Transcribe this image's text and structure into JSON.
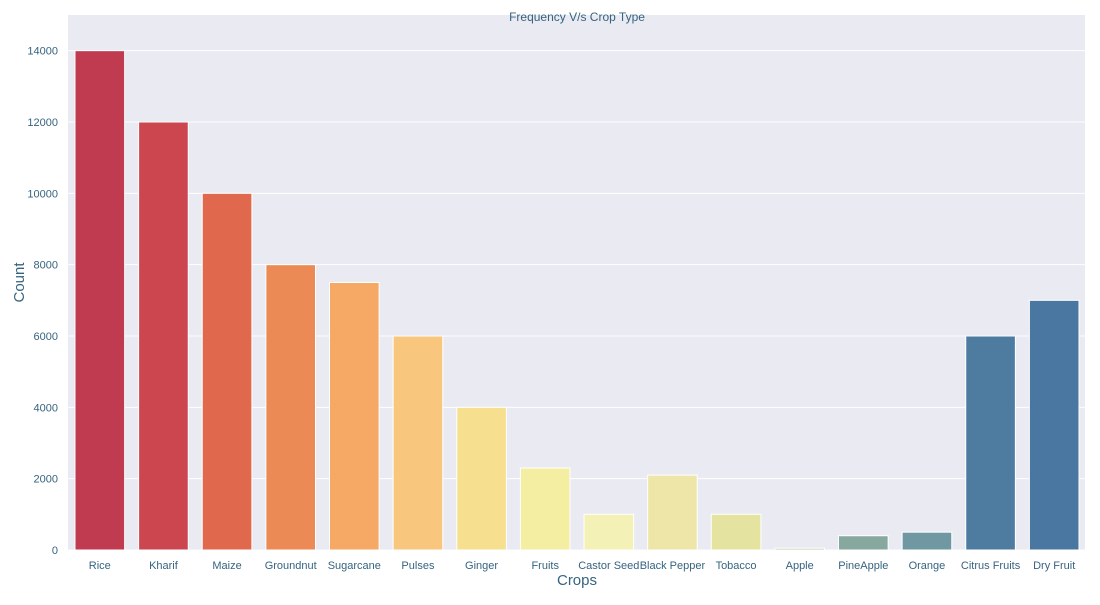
{
  "chart_data": {
    "type": "bar",
    "title": "Frequency V/s Crop Type",
    "xlabel": "Crops",
    "ylabel": "Count",
    "categories": [
      "Rice",
      "Kharif",
      "Maize",
      "Groundnut",
      "Sugarcane",
      "Pulses",
      "Ginger",
      "Fruits",
      "Castor Seed",
      "Black Pepper",
      "Tobacco",
      "Apple",
      "PineApple",
      "Orange",
      "Citrus Fruits",
      "Dry Fruit"
    ],
    "values": [
      14000,
      12000,
      10000,
      8000,
      7500,
      6000,
      4000,
      2300,
      1000,
      2100,
      1000,
      50,
      400,
      500,
      6000,
      7000
    ],
    "colors": [
      "#c03a50",
      "#cc4650",
      "#e0684c",
      "#ec8a55",
      "#f6a965",
      "#f9c67d",
      "#f6e08f",
      "#f4eea3",
      "#f4f1b6",
      "#ede6a8",
      "#e4e3a0",
      "#b9d0b0",
      "#87a89f",
      "#6f98a2",
      "#4e7ba0",
      "#4a77a1"
    ],
    "ylim": [
      0,
      15000
    ],
    "yticks": [
      0,
      2000,
      4000,
      6000,
      8000,
      10000,
      12000,
      14000
    ],
    "grid": true,
    "legend": "none"
  },
  "style": {
    "background": "#eaeaf2",
    "grid_color": "#ffffff",
    "text_color": "#35637f"
  }
}
